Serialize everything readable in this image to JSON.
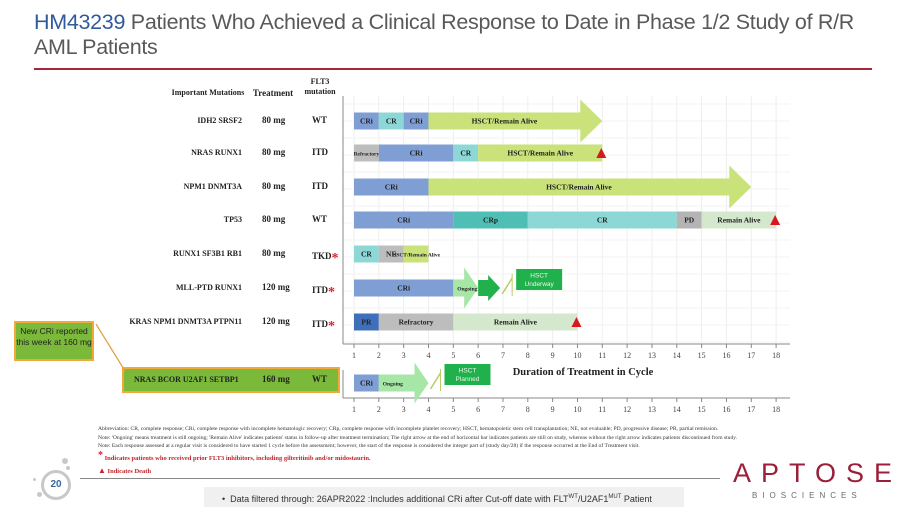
{
  "title": {
    "code": "HM43239",
    "text": " Patients Who Achieved a Clinical Response to Date in Phase 1/2 Study of R/R AML Patients"
  },
  "table_headers": {
    "mutations": "Important Mutations",
    "treatment": "Treatment",
    "flt3": "FLT3 mutation"
  },
  "callout": "New CRi reported this week at 160 mg",
  "chart_data": {
    "type": "bar",
    "subtype": "swimmer-plot",
    "xlabel": "Duration of Treatment in Cycle",
    "x_ticks": [
      1,
      2,
      3,
      4,
      5,
      6,
      7,
      8,
      9,
      10,
      11,
      12,
      13,
      14,
      15,
      16,
      17,
      18
    ],
    "xlim": [
      1,
      18
    ],
    "grid": true,
    "colors": {
      "CRi": "#7f9fd4",
      "CR": "#8dd8d7",
      "CRp": "#4fbfb5",
      "HSCT": "#c9e27a",
      "Refractory": "#bdbdbd",
      "NE": "#bdbdbd",
      "PD": "#b4b4b4",
      "RemainAlive": "#d3e8cc",
      "PR": "#3f6fba",
      "Ongoing": "#a6e6a6",
      "OngoingDark": "#21b14c",
      "HSCTBox": "#21b14c",
      "Death": "#d8181f"
    },
    "patients": [
      {
        "mutations": "IDH2 SRSF2",
        "treatment": "80 mg",
        "flt3": "WT",
        "prior_flt3i": false,
        "segments": [
          {
            "label": "CRi",
            "start": 1,
            "end": 2,
            "color": "CRi"
          },
          {
            "label": "CR",
            "start": 2,
            "end": 3,
            "color": "CR"
          },
          {
            "label": "CRi",
            "start": 3,
            "end": 4,
            "color": "CRi"
          },
          {
            "label": "HSCT/Remain Alive",
            "start": 4,
            "end": 11,
            "color": "HSCT",
            "arrow": true
          }
        ],
        "death": false
      },
      {
        "mutations": "NRAS  RUNX1",
        "treatment": "80 mg",
        "flt3": "ITD",
        "prior_flt3i": false,
        "segments": [
          {
            "label": "Refractory",
            "start": 1,
            "end": 2,
            "color": "Refractory",
            "small": true
          },
          {
            "label": "CRi",
            "start": 2,
            "end": 5,
            "color": "CRi"
          },
          {
            "label": "CR",
            "start": 5,
            "end": 6,
            "color": "CR"
          },
          {
            "label": "HSCT/Remain Alive",
            "start": 6,
            "end": 11,
            "color": "HSCT"
          }
        ],
        "death": true,
        "death_at": 11
      },
      {
        "mutations": "NPM1  DNMT3A",
        "treatment": "80 mg",
        "flt3": "ITD",
        "prior_flt3i": false,
        "segments": [
          {
            "label": "CRi",
            "start": 1,
            "end": 4,
            "color": "CRi"
          },
          {
            "label": "HSCT/Remain Alive",
            "start": 4,
            "end": 17,
            "color": "HSCT",
            "arrow": true
          }
        ],
        "death": false
      },
      {
        "mutations": "TP53",
        "treatment": "80 mg",
        "flt3": "WT",
        "prior_flt3i": false,
        "segments": [
          {
            "label": "CRi",
            "start": 1,
            "end": 5,
            "color": "CRi"
          },
          {
            "label": "CRp",
            "start": 5,
            "end": 8,
            "color": "CRp"
          },
          {
            "label": "CR",
            "start": 8,
            "end": 14,
            "color": "CR"
          },
          {
            "label": "PD",
            "start": 14,
            "end": 15,
            "color": "PD"
          },
          {
            "label": "Remain Alive",
            "start": 15,
            "end": 18,
            "color": "RemainAlive"
          }
        ],
        "death": true,
        "death_at": 18
      },
      {
        "mutations": "RUNX1 SF3B1 RB1",
        "treatment": "80 mg",
        "flt3": "TKD",
        "prior_flt3i": true,
        "segments": [
          {
            "label": "CR",
            "start": 1,
            "end": 2,
            "color": "CR"
          },
          {
            "label": "NE",
            "start": 2,
            "end": 3,
            "color": "NE"
          },
          {
            "label": "HSCT/Remain Alive",
            "start": 3,
            "end": 4,
            "color": "HSCT",
            "small": true
          }
        ],
        "death": false
      },
      {
        "mutations": "MLL-PTD  RUNX1",
        "treatment": "120 mg",
        "flt3": "ITD",
        "prior_flt3i": true,
        "segments": [
          {
            "label": "CRi",
            "start": 1,
            "end": 5,
            "color": "CRi"
          },
          {
            "label": "Ongoing",
            "start": 5,
            "end": 6,
            "color": "Ongoing",
            "arrow": true,
            "small": true
          }
        ],
        "extra": {
          "label": "HSCT Underway"
        },
        "death": false
      },
      {
        "mutations": "KRAS  NPM1  DNMT3A  PTPN11",
        "treatment": "120 mg",
        "flt3": "ITD",
        "prior_flt3i": true,
        "segments": [
          {
            "label": "PR",
            "start": 1,
            "end": 2,
            "color": "PR"
          },
          {
            "label": "Refractory",
            "start": 2,
            "end": 5,
            "color": "Refractory"
          },
          {
            "label": "Remain Alive",
            "start": 5,
            "end": 10,
            "color": "RemainAlive"
          }
        ],
        "death": true,
        "death_at": 10
      }
    ],
    "new_patient": {
      "mutations": "NRAS  BCOR  U2AF1  SETBP1",
      "treatment": "160 mg",
      "flt3": "WT",
      "prior_flt3i": false,
      "segments": [
        {
          "label": "CRi",
          "start": 1,
          "end": 2,
          "color": "CRi"
        },
        {
          "label": "Ongoing",
          "start": 2,
          "end": 4,
          "color": "Ongoing",
          "arrow": true,
          "small": true
        }
      ],
      "extra": {
        "label": "HSCT Planned"
      },
      "death": false
    }
  },
  "notes": [
    "Abbreviation: CR, complete response; CRi, complete response with incomplete hematologic recovery; CRp, complete response with incomplete platelet recovery; HSCT, hematopoietic stem cell transplantation; NE, not evaluable; PD, progressive disease; PR, partial remission.",
    "Note: 'Ongoing' means treatment is still ongoing; 'Remain Alive' indicates patients' status in follow-up after treatment termination; The right arrow at the end of horizontal bar indicates patients are still on study, whereas without the right arrow indicates patients discontinued from study.",
    "Note: Each response assessed at a regular visit is considered to have started 1 cycle before the assessment; however, the start of the response is considered the integer part of (study day/28) if the response occurred at the End of Treatment visit."
  ],
  "legend": {
    "star": "Indicates patients who received prior FLT3 inhibitors, including gilteritinib and/or midostaurin.",
    "death": "Indicates Death"
  },
  "footer": {
    "bullet": "•",
    "text_pre": "Data filtered through: 26APR2022 :Includes additional CRi after Cut-off date with FLT",
    "sup1": "WT",
    "mid": "/U2AF1",
    "sup2": "MUT",
    "post": " Patient"
  },
  "page_number": "20",
  "logo": {
    "name": "APTOSE",
    "sub": "BIOSCIENCES"
  }
}
